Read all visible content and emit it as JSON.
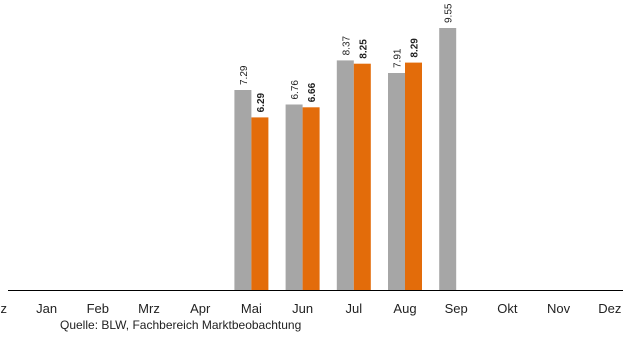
{
  "chart_data": {
    "type": "bar",
    "categories": [
      "Dez",
      "Jan",
      "Feb",
      "Mrz",
      "Apr",
      "Mai",
      "Jun",
      "Jul",
      "Aug",
      "Sep",
      "Okt",
      "Nov",
      "Dez"
    ],
    "series": [
      {
        "values": [
          null,
          null,
          null,
          null,
          null,
          7.29,
          6.76,
          8.37,
          7.91,
          9.55,
          null,
          null,
          null
        ],
        "color": "#a6a6a6",
        "label_bold": false
      },
      {
        "values": [
          null,
          null,
          null,
          null,
          null,
          6.29,
          6.66,
          8.25,
          8.29,
          null,
          null,
          null,
          null
        ],
        "color": "#e36c0a",
        "label_bold": true
      }
    ],
    "ylim": [
      0,
      9.55
    ],
    "grid": false,
    "value_labels": [
      "7.29",
      "6.76",
      "8.37",
      "7.91",
      "9.55",
      "6.29",
      "6.66",
      "8.25",
      "8.29"
    ],
    "source": "Quelle: BLW, Fachbereich Marktbeobachtung"
  }
}
